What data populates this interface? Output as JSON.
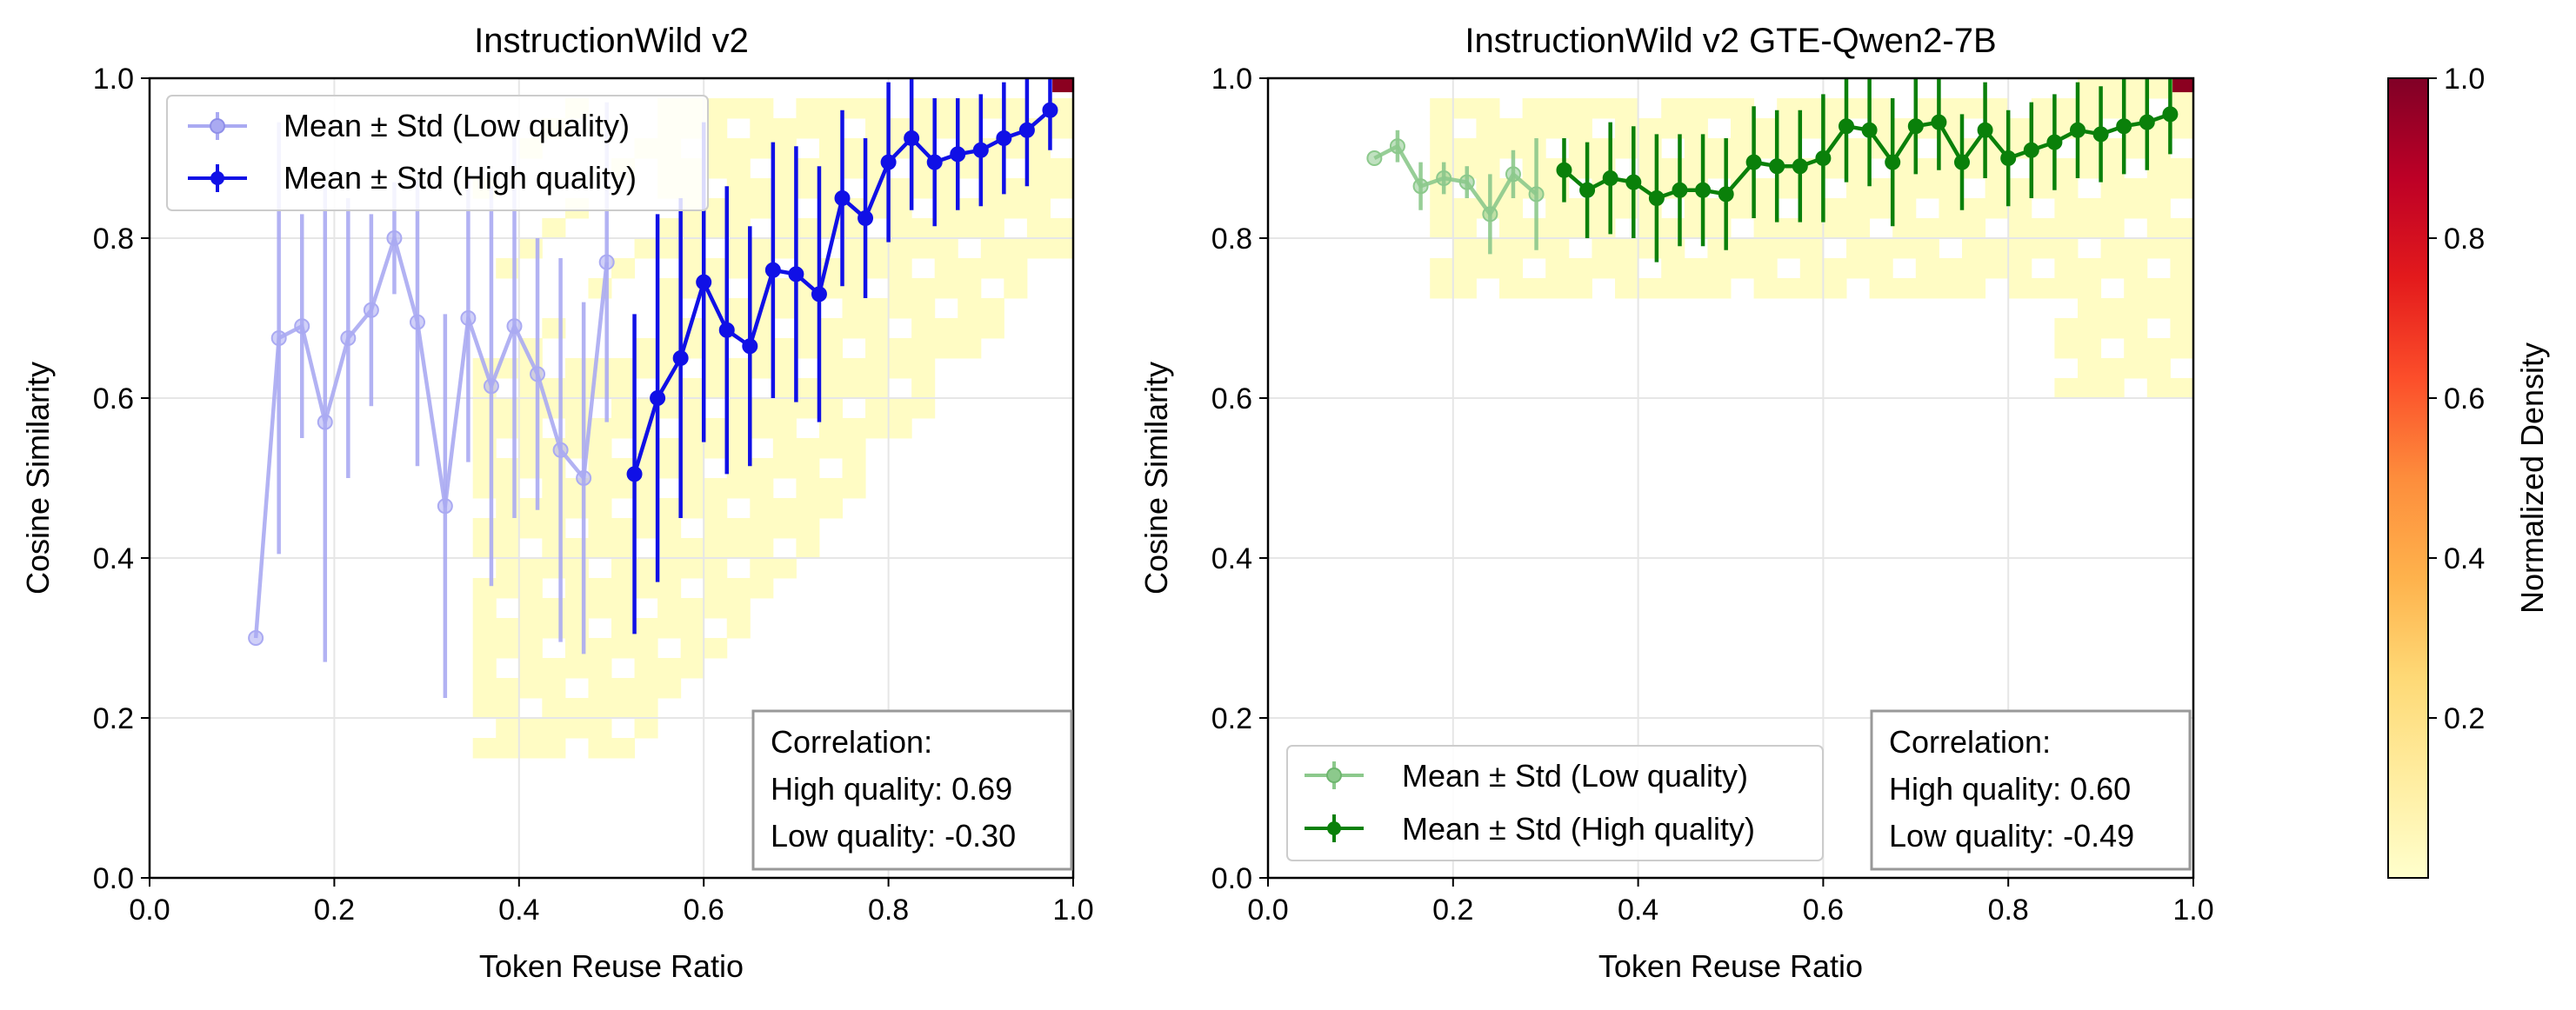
{
  "chart_data": [
    {
      "type": "scatter",
      "panel": "left",
      "title": "InstructionWild v2",
      "xlabel": "Token Reuse Ratio",
      "ylabel": "Cosine Similarity",
      "xlim": [
        0.0,
        1.0
      ],
      "ylim": [
        0.0,
        1.0
      ],
      "xticks": [
        "0.0",
        "0.2",
        "0.4",
        "0.6",
        "0.8",
        "1.0"
      ],
      "yticks": [
        "0.0",
        "0.2",
        "0.4",
        "0.6",
        "0.8",
        "1.0"
      ],
      "grid": true,
      "legend_position": "upper-left",
      "colors": {
        "low": "#aaaaf2",
        "high": "#1010e6",
        "heat": "#fffcc4"
      },
      "series": [
        {
          "name": "Mean ± Std (Low quality)",
          "x": [
            0.115,
            0.14,
            0.165,
            0.19,
            0.215,
            0.24,
            0.265,
            0.29,
            0.32,
            0.345,
            0.37,
            0.395,
            0.42,
            0.445,
            0.47,
            0.495
          ],
          "y": [
            0.3,
            0.675,
            0.69,
            0.57,
            0.675,
            0.71,
            0.8,
            0.695,
            0.465,
            0.7,
            0.615,
            0.69,
            0.63,
            0.535,
            0.5,
            0.77
          ],
          "err": [
            0.0,
            0.27,
            0.14,
            0.3,
            0.175,
            0.12,
            0.07,
            0.18,
            0.24,
            0.18,
            0.25,
            0.24,
            0.17,
            0.24,
            0.22,
            0.2
          ]
        },
        {
          "name": "Mean ± Std (High quality)",
          "x": [
            0.525,
            0.55,
            0.575,
            0.6,
            0.625,
            0.65,
            0.675,
            0.7,
            0.725,
            0.75,
            0.775,
            0.8,
            0.825,
            0.85,
            0.875,
            0.9,
            0.925,
            0.95,
            0.975
          ],
          "y": [
            0.505,
            0.6,
            0.65,
            0.745,
            0.685,
            0.665,
            0.76,
            0.755,
            0.73,
            0.85,
            0.825,
            0.895,
            0.925,
            0.895,
            0.905,
            0.91,
            0.925,
            0.935,
            0.96
          ],
          "err": [
            0.2,
            0.23,
            0.2,
            0.2,
            0.18,
            0.15,
            0.16,
            0.16,
            0.16,
            0.11,
            0.1,
            0.1,
            0.09,
            0.08,
            0.07,
            0.07,
            0.07,
            0.07,
            0.05
          ]
        }
      ],
      "annotation": {
        "heading": "Correlation:",
        "high": "High quality: 0.69",
        "low": "Low quality: -0.30"
      }
    },
    {
      "type": "scatter",
      "panel": "right",
      "title": "InstructionWild v2 GTE-Qwen2-7B",
      "xlabel": "Token Reuse Ratio",
      "ylabel": "Cosine Similarity",
      "xlim": [
        0.0,
        1.0
      ],
      "ylim": [
        0.0,
        1.0
      ],
      "xticks": [
        "0.0",
        "0.2",
        "0.4",
        "0.6",
        "0.8",
        "1.0"
      ],
      "yticks": [
        "0.0",
        "0.2",
        "0.4",
        "0.6",
        "0.8",
        "1.0"
      ],
      "grid": true,
      "legend_position": "lower-left",
      "colors": {
        "low": "#8cc98c",
        "high": "#0a800a",
        "heat": "#fffcc4"
      },
      "series": [
        {
          "name": "Mean ± Std (Low quality)",
          "x": [
            0.115,
            0.14,
            0.165,
            0.19,
            0.215,
            0.24,
            0.265,
            0.29
          ],
          "y": [
            0.9,
            0.915,
            0.865,
            0.875,
            0.87,
            0.83,
            0.88,
            0.855
          ],
          "err": [
            0.0,
            0.02,
            0.03,
            0.02,
            0.02,
            0.05,
            0.03,
            0.07
          ]
        },
        {
          "name": "Mean ± Std (High quality)",
          "x": [
            0.32,
            0.345,
            0.37,
            0.395,
            0.42,
            0.445,
            0.47,
            0.495,
            0.525,
            0.55,
            0.575,
            0.6,
            0.625,
            0.65,
            0.675,
            0.7,
            0.725,
            0.75,
            0.775,
            0.8,
            0.825,
            0.85,
            0.875,
            0.9,
            0.925,
            0.95,
            0.975
          ],
          "y": [
            0.885,
            0.86,
            0.875,
            0.87,
            0.85,
            0.86,
            0.86,
            0.855,
            0.895,
            0.89,
            0.89,
            0.9,
            0.94,
            0.935,
            0.895,
            0.94,
            0.945,
            0.895,
            0.935,
            0.9,
            0.91,
            0.92,
            0.935,
            0.93,
            0.94,
            0.945,
            0.955
          ],
          "err": [
            0.04,
            0.06,
            0.07,
            0.07,
            0.08,
            0.07,
            0.07,
            0.07,
            0.07,
            0.07,
            0.07,
            0.08,
            0.07,
            0.07,
            0.08,
            0.06,
            0.06,
            0.06,
            0.06,
            0.06,
            0.06,
            0.06,
            0.06,
            0.06,
            0.06,
            0.06,
            0.05
          ]
        }
      ],
      "annotation": {
        "heading": "Correlation:",
        "high": "High quality: 0.60",
        "low": "Low quality: -0.49"
      }
    },
    {
      "type": "heatmap",
      "panel": "colorbar",
      "label": "Normalized Density",
      "ylim": [
        0.0,
        1.0
      ],
      "ticks": [
        "0.2",
        "0.4",
        "0.6",
        "0.8",
        "1.0"
      ],
      "colors": [
        "#ffffcc",
        "#ffeda0",
        "#fed976",
        "#feb24c",
        "#fd8d3c",
        "#fc4e2a",
        "#e31a1c",
        "#bd0026",
        "#800026"
      ]
    }
  ]
}
